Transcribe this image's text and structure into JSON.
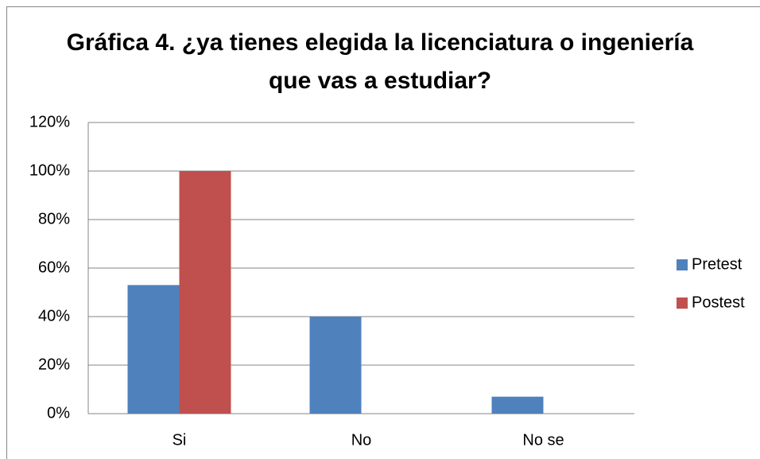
{
  "chart_data": {
    "type": "bar",
    "title": "Gráfica 4. ¿ya tienes elegida la licenciatura o ingeniería que vas a estudiar?",
    "categories": [
      "Si",
      "No",
      "No se"
    ],
    "series": [
      {
        "name": "Pretest",
        "color": "#4f81bd",
        "values": [
          53,
          40,
          7
        ]
      },
      {
        "name": "Postest",
        "color": "#c0504d",
        "values": [
          100,
          0,
          0
        ]
      }
    ],
    "ylim": [
      0,
      120
    ],
    "yticks": [
      {
        "value": 0,
        "label": "0%"
      },
      {
        "value": 20,
        "label": "20%"
      },
      {
        "value": 40,
        "label": "40%"
      },
      {
        "value": 60,
        "label": "60%"
      },
      {
        "value": 80,
        "label": "80%"
      },
      {
        "value": 100,
        "label": "100%"
      },
      {
        "value": 120,
        "label": "120%"
      }
    ],
    "grid": true,
    "legend": "right"
  }
}
